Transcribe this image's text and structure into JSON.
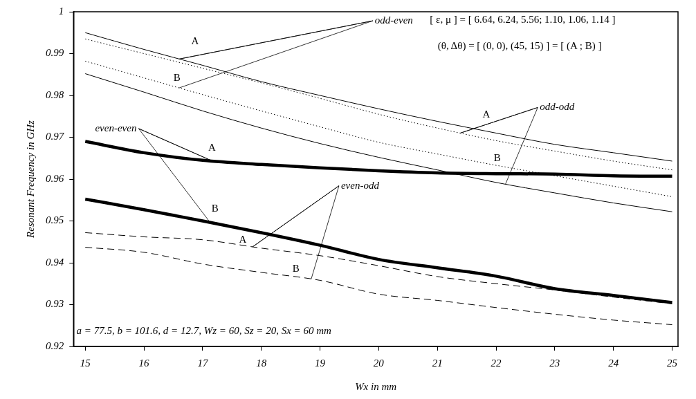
{
  "chart_data": {
    "type": "line",
    "xlabel": "Wx in mm",
    "ylabel": "Resonant Frequency in GHz",
    "x": [
      15,
      16,
      17,
      18,
      19,
      20,
      21,
      22,
      23,
      24,
      25
    ],
    "xlim": [
      14.8,
      25.1
    ],
    "xticks": [
      15,
      16,
      17,
      18,
      19,
      20,
      21,
      22,
      23,
      24,
      25
    ],
    "ylim": [
      0.92,
      1
    ],
    "yticks": [
      0.92,
      0.93,
      0.94,
      0.95,
      0.96,
      0.97,
      0.98,
      0.99,
      1
    ],
    "grid": false,
    "legend": false,
    "marker": "none",
    "series": [
      {
        "color": "#000000",
        "line_style": "solid",
        "values": [
          0.995,
          0.991,
          0.9872,
          0.9833,
          0.98,
          0.9768,
          0.9738,
          0.971,
          0.9683,
          0.9663,
          0.9643
        ]
      },
      {
        "color": "#000000",
        "line_style": "dotted",
        "values": [
          0.9935,
          0.99,
          0.9865,
          0.983,
          0.9793,
          0.9755,
          0.9722,
          0.9692,
          0.9667,
          0.9643,
          0.9622
        ]
      },
      {
        "color": "#000000",
        "line_style": "dotted",
        "values": [
          0.9882,
          0.9842,
          0.9802,
          0.9763,
          0.9725,
          0.9688,
          0.966,
          0.9633,
          0.9608,
          0.9583,
          0.9558
        ]
      },
      {
        "color": "#000000",
        "line_style": "solid",
        "values": [
          0.9852,
          0.9808,
          0.9763,
          0.9722,
          0.9685,
          0.9652,
          0.9622,
          0.9592,
          0.9567,
          0.9543,
          0.9522
        ]
      },
      {
        "color": "#000000",
        "line_style": "solid",
        "values": [
          0.969,
          0.9663,
          0.9645,
          0.9635,
          0.9627,
          0.962,
          0.9615,
          0.9613,
          0.9612,
          0.9608,
          0.9607
        ]
      },
      {
        "color": "#000000",
        "line_style": "solid",
        "values": [
          0.9552,
          0.9527,
          0.95,
          0.9472,
          0.9442,
          0.9408,
          0.9388,
          0.9368,
          0.9338,
          0.9322,
          0.9305
        ]
      },
      {
        "color": "#000000",
        "line_style": "dashed",
        "values": [
          0.9472,
          0.9462,
          0.9455,
          0.9435,
          0.9417,
          0.9393,
          0.9367,
          0.935,
          0.9335,
          0.9318,
          0.9302
        ]
      },
      {
        "color": "#000000",
        "line_style": "dashed",
        "values": [
          0.9437,
          0.9425,
          0.9397,
          0.9377,
          0.9358,
          0.9325,
          0.931,
          0.9293,
          0.9277,
          0.9263,
          0.9252
        ]
      }
    ],
    "annotations": [
      "[ ε, μ ] = [ 6.64, 6.24, 5.56; 1.10, 1.06, 1.14 ]",
      "(θ, Δθ) = [ (0, 0), (45, 15) ] = [ (A ; B) ]",
      "a = 77.5, b = 101.6, d = 12.7, Wz = 60, Sz = 20, Sx = 60 mm",
      {
        "text": "odd-even",
        "x": 16.6,
        "y": 0.9887
      },
      {
        "text": "A",
        "x": 16.6,
        "y": 0.9887
      },
      {
        "text": "B",
        "x": 16.6,
        "y": 0.9818
      },
      {
        "text": "odd-odd",
        "x": 21.39,
        "y": 0.971
      },
      {
        "text": "A",
        "x": 21.39,
        "y": 0.971
      },
      {
        "text": "B",
        "x": 22.16,
        "y": 0.9588
      },
      {
        "text": "even-even",
        "x": 17.17,
        "y": 0.9643
      },
      {
        "text": "A",
        "x": 17.17,
        "y": 0.9643
      },
      {
        "text": "B",
        "x": 17.13,
        "y": 0.9496
      },
      {
        "text": "even-odd",
        "x": 17.85,
        "y": 0.9438
      },
      {
        "text": "A",
        "x": 17.85,
        "y": 0.9438
      },
      {
        "text": "B",
        "x": 18.85,
        "y": 0.9361
      }
    ]
  }
}
